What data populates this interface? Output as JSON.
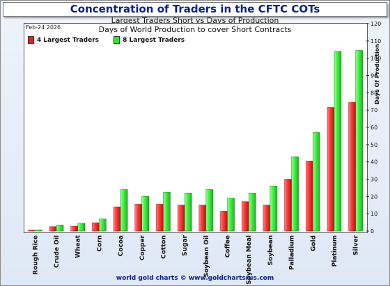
{
  "title": "Concentration of Traders in the CFTC COTs",
  "subtitle": "Largest Traders Short vs Days of Production",
  "subtitle2": "Days of World Production to cover Short Contracts",
  "date_label": "Feb-24  2026",
  "footer": "world gold charts © www.goldchartsrus.com",
  "colors": {
    "red": "#e81e1e",
    "green": "#2be82b"
  },
  "chart_data": {
    "type": "bar",
    "title": "Concentration of Traders in the CFTC COTs",
    "subtitle": "Largest Traders Short vs Days of Production",
    "categories": [
      "Rough Rice",
      "Crude Oil",
      "Wheat",
      "Corn",
      "Cocoa",
      "Copper",
      "Cotton",
      "Sugar",
      "Soybean Oil",
      "Coffee",
      "Soybean Meal",
      "Soybean",
      "Palladium",
      "Gold",
      "Platinum",
      "Silver"
    ],
    "series": [
      {
        "name": "4 Largest Traders",
        "values": [
          0.5,
          2.5,
          2.8,
          4.8,
          14,
          15.5,
          15.5,
          15,
          15,
          11.5,
          17,
          15,
          30,
          40.5,
          71.5,
          74.5
        ]
      },
      {
        "name": "8 Largest Traders",
        "values": [
          0.7,
          3.5,
          4.5,
          7,
          24,
          20,
          22.5,
          22,
          24,
          19,
          22,
          26,
          43,
          57,
          104,
          104.5
        ]
      }
    ],
    "ylabel": "Days Of Production",
    "ylim": [
      0,
      120
    ],
    "yticks": [
      0,
      10,
      20,
      30,
      40,
      50,
      60,
      70,
      80,
      90,
      100,
      110,
      120
    ],
    "y_axis_side": "right",
    "grid": false,
    "legend_position": "top-left"
  }
}
